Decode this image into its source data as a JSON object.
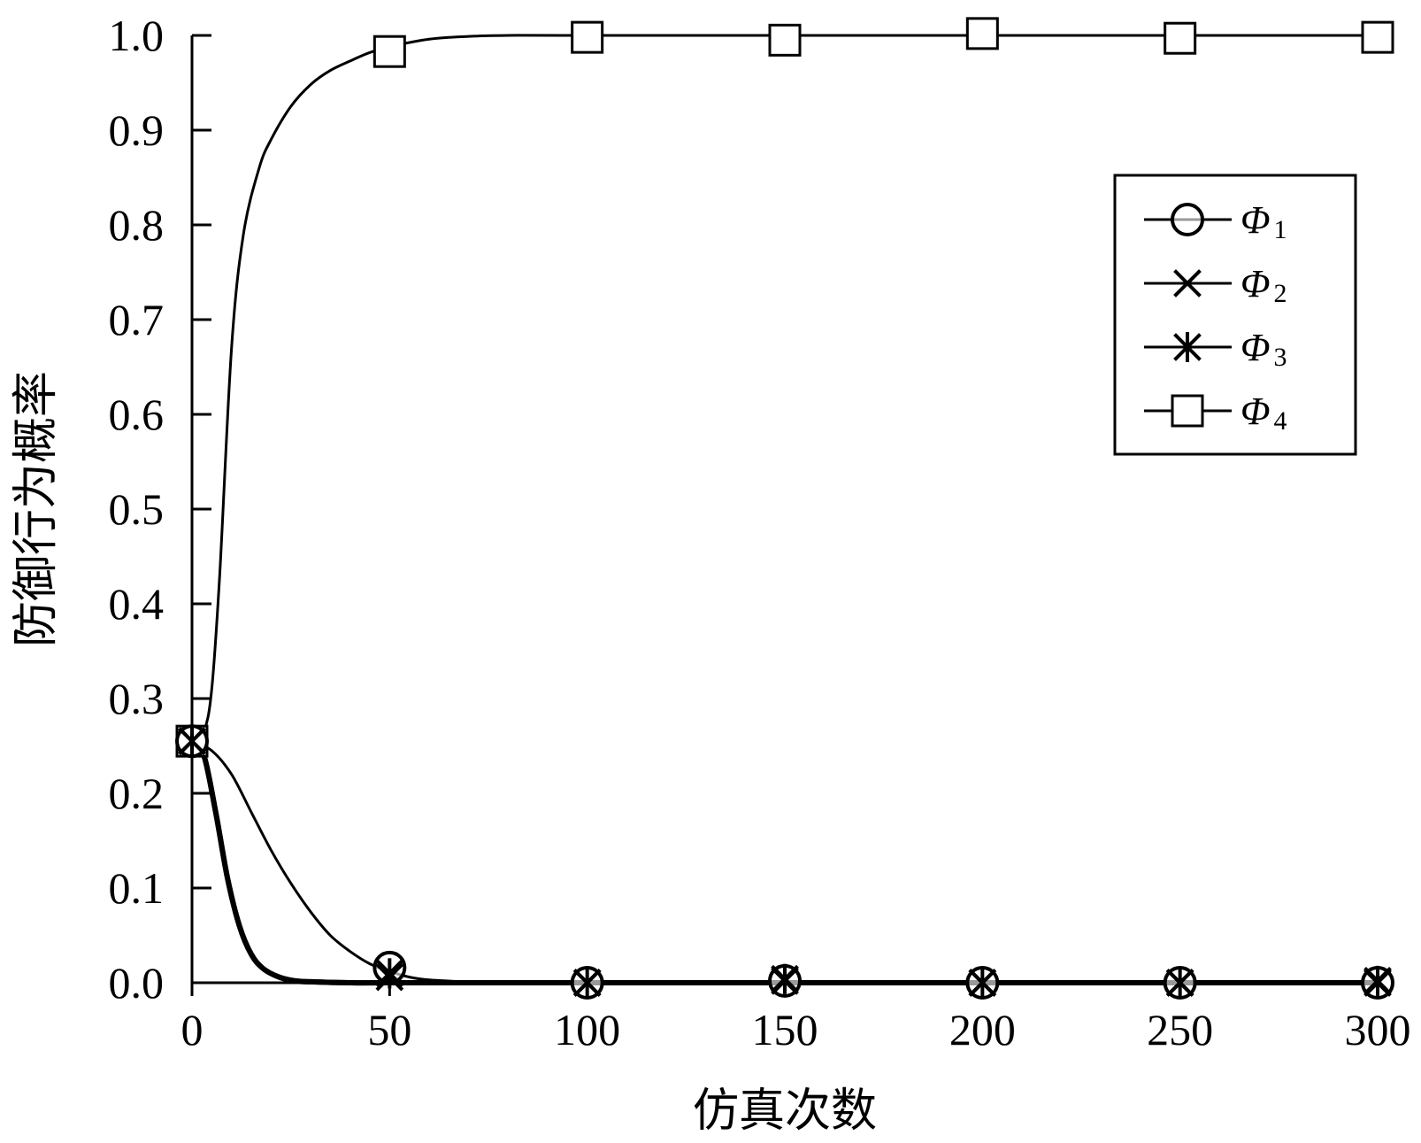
{
  "chart_data": {
    "type": "line",
    "xlabel": "仿真次数",
    "ylabel": "防御行为概率",
    "xlim": [
      0,
      300
    ],
    "ylim": [
      0,
      1.0
    ],
    "x_ticks": [
      "0",
      "50",
      "100",
      "150",
      "200",
      "250",
      "300"
    ],
    "y_ticks": [
      "0.0",
      "0.1",
      "0.2",
      "0.3",
      "0.4",
      "0.5",
      "0.6",
      "0.7",
      "0.8",
      "0.9",
      "1.0"
    ],
    "grid": false,
    "legend_position": "top-right",
    "series": [
      {
        "name": "Φ1",
        "symbol": "Φ",
        "subscript": "1",
        "marker": "circle",
        "curve_x": [
          0,
          5,
          10,
          15,
          20,
          25,
          30,
          35,
          40,
          45,
          50,
          55,
          60,
          70,
          80,
          100,
          150,
          200,
          250,
          300
        ],
        "curve_y": [
          0.255,
          0.245,
          0.22,
          0.18,
          0.14,
          0.105,
          0.075,
          0.05,
          0.033,
          0.02,
          0.012,
          0.006,
          0.003,
          0.001,
          0.0,
          0.0,
          0.0,
          0.0,
          0.0,
          0.0
        ],
        "marker_x": [
          0,
          50,
          100,
          150,
          200,
          250,
          300
        ],
        "marker_y": [
          0.255,
          0.016,
          0.0,
          0.002,
          0.0,
          0.0,
          0.0
        ]
      },
      {
        "name": "Φ2",
        "symbol": "Φ",
        "subscript": "2",
        "marker": "x",
        "curve_x": [
          0,
          3,
          6,
          9,
          12,
          15,
          18,
          22,
          26,
          30,
          40,
          50,
          100,
          150,
          200,
          250,
          300
        ],
        "curve_y": [
          0.255,
          0.24,
          0.18,
          0.11,
          0.06,
          0.03,
          0.015,
          0.006,
          0.002,
          0.001,
          0.0,
          0.0,
          0.0,
          0.0,
          0.0,
          0.0,
          0.0
        ],
        "marker_x": [
          0,
          50,
          100,
          150,
          200,
          250,
          300
        ],
        "marker_y": [
          0.255,
          0.006,
          0.0,
          0.002,
          0.0,
          0.0,
          0.0
        ]
      },
      {
        "name": "Φ3",
        "symbol": "Φ",
        "subscript": "3",
        "marker": "asterisk",
        "curve_x": [
          0,
          3,
          6,
          9,
          12,
          15,
          18,
          22,
          26,
          30,
          40,
          50,
          100,
          150,
          200,
          250,
          300
        ],
        "curve_y": [
          0.255,
          0.24,
          0.18,
          0.11,
          0.06,
          0.03,
          0.015,
          0.006,
          0.002,
          0.001,
          0.0,
          0.0,
          0.0,
          0.0,
          0.0,
          0.0,
          0.0
        ],
        "marker_x": [
          0,
          50,
          100,
          150,
          200,
          250,
          300
        ],
        "marker_y": [
          0.255,
          0.01,
          0.0,
          0.004,
          0.0,
          0.0,
          0.002
        ]
      },
      {
        "name": "Φ4",
        "symbol": "Φ",
        "subscript": "4",
        "marker": "square",
        "curve_x": [
          0,
          3,
          5,
          7,
          10,
          13,
          17,
          20,
          25,
          30,
          35,
          40,
          45,
          50,
          60,
          70,
          80,
          100,
          150,
          200,
          250,
          300
        ],
        "curve_y": [
          0.255,
          0.265,
          0.31,
          0.43,
          0.67,
          0.79,
          0.86,
          0.89,
          0.925,
          0.948,
          0.963,
          0.973,
          0.982,
          0.988,
          0.996,
          0.999,
          1.0,
          1.0,
          1.0,
          1.0,
          1.0,
          1.0
        ],
        "marker_x": [
          0,
          50,
          100,
          150,
          200,
          250,
          300
        ],
        "marker_y": [
          0.255,
          0.983,
          0.998,
          0.995,
          1.002,
          0.997,
          0.998
        ]
      }
    ]
  }
}
